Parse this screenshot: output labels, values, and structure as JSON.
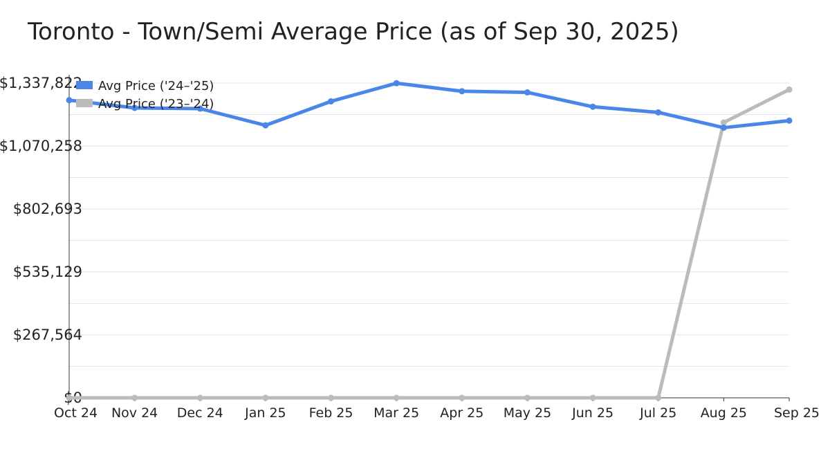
{
  "chart_data": {
    "type": "line",
    "title": "Toronto - Town/Semi Average Price (as of Sep 30, 2025)",
    "xlabel": "",
    "ylabel": "",
    "categories": [
      "Oct 24",
      "Nov 24",
      "Dec 24",
      "Jan 25",
      "Feb 25",
      "Mar 25",
      "Apr 25",
      "May 25",
      "Jun 25",
      "Jul 25",
      "Aug 25",
      "Sep 25"
    ],
    "y_ticks": [
      "$0",
      "$267,564",
      "$535,129",
      "$802,693",
      "$1,070,258",
      "$1,337,822"
    ],
    "ylim": [
      0,
      1337822
    ],
    "grid": true,
    "legend_position": "top-left",
    "series": [
      {
        "name": "Avg Price ('24–'25)",
        "color": "#4a86e8",
        "values": [
          1265000,
          1232000,
          1229000,
          1158000,
          1260000,
          1337000,
          1303000,
          1298000,
          1237000,
          1213000,
          1148000,
          1178000
        ]
      },
      {
        "name": "Avg Price ('23–'24)",
        "color": "#bbbbbb",
        "values": [
          0,
          0,
          0,
          0,
          0,
          0,
          0,
          0,
          0,
          0,
          1170000,
          1310000
        ]
      }
    ]
  }
}
